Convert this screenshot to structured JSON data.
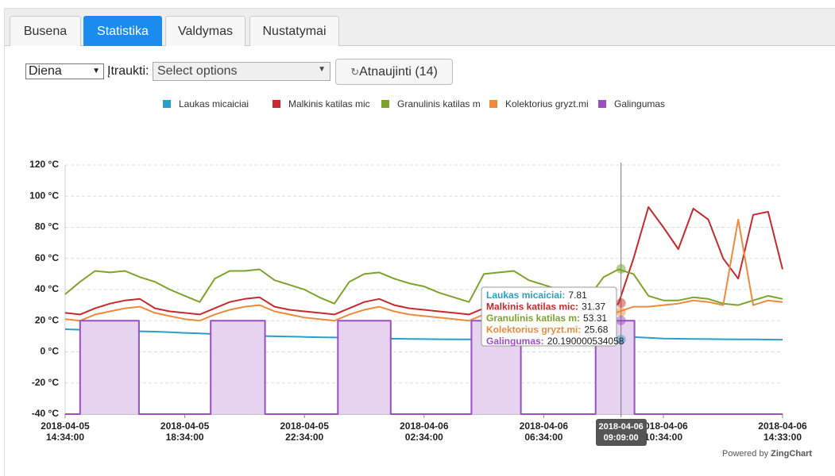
{
  "tabs": [
    "Busena",
    "Statistika",
    "Valdymas",
    "Nustatymai"
  ],
  "active_tab": 1,
  "controls": {
    "period": "Diena",
    "include_label": "Įtraukti:",
    "include_placeholder": "Select options",
    "refresh_button": "Atnaujinti (14)"
  },
  "footer": {
    "powered_by": "Powered by",
    "brand": "ZingChart"
  },
  "chart_data": {
    "type": "line",
    "x": [
      "2018-04-05 14:34",
      "2018-04-05 15:04",
      "2018-04-05 15:34",
      "2018-04-05 16:04",
      "2018-04-05 16:34",
      "2018-04-05 17:04",
      "2018-04-05 17:34",
      "2018-04-05 18:04",
      "2018-04-05 18:34",
      "2018-04-05 19:04",
      "2018-04-05 19:34",
      "2018-04-05 20:04",
      "2018-04-05 20:34",
      "2018-04-05 21:04",
      "2018-04-05 21:34",
      "2018-04-05 22:04",
      "2018-04-05 22:34",
      "2018-04-05 23:04",
      "2018-04-05 23:34",
      "2018-04-06 00:04",
      "2018-04-06 00:34",
      "2018-04-06 01:04",
      "2018-04-06 01:34",
      "2018-04-06 02:04",
      "2018-04-06 02:34",
      "2018-04-06 03:04",
      "2018-04-06 03:34",
      "2018-04-06 04:04",
      "2018-04-06 04:34",
      "2018-04-06 05:04",
      "2018-04-06 05:34",
      "2018-04-06 06:04",
      "2018-04-06 06:34",
      "2018-04-06 07:04",
      "2018-04-06 07:34",
      "2018-04-06 08:04",
      "2018-04-06 08:34",
      "2018-04-06 09:04",
      "2018-04-06 09:34",
      "2018-04-06 10:04",
      "2018-04-06 10:34",
      "2018-04-06 11:04",
      "2018-04-06 11:34",
      "2018-04-06 12:04",
      "2018-04-06 12:34",
      "2018-04-06 13:04",
      "2018-04-06 13:34",
      "2018-04-06 14:04",
      "2018-04-06 14:33"
    ],
    "series": [
      {
        "name": "Laukas micaiciai",
        "color": "#2a9fc9",
        "values": [
          14.5,
          14.2,
          14,
          13.8,
          13.5,
          13.2,
          13,
          12.6,
          12.2,
          11.8,
          11.4,
          11,
          10.6,
          10.2,
          10,
          9.8,
          9.6,
          9.4,
          9.2,
          9,
          8.8,
          8.6,
          8.4,
          8.3,
          8.2,
          8.1,
          8,
          8,
          7.9,
          7.9,
          7.8,
          7.8,
          7.8,
          7.8,
          7.8,
          7.8,
          7.8,
          7.8,
          9.5,
          9,
          8.5,
          8.4,
          8.3,
          8.2,
          8.1,
          8,
          8,
          7.9,
          7.8
        ]
      },
      {
        "name": "Malkinis katilas mic",
        "color": "#c62a2f",
        "values": [
          25,
          24,
          28,
          31,
          33,
          34,
          28,
          26,
          25,
          24,
          28,
          32,
          34,
          35,
          29,
          27,
          26,
          25,
          24,
          28,
          32,
          34,
          30,
          28,
          27,
          26,
          25,
          24,
          28,
          31,
          33,
          34,
          33,
          30,
          28,
          27,
          27,
          31,
          60,
          93,
          80,
          66,
          92,
          85,
          60,
          47,
          88,
          90,
          53
        ]
      },
      {
        "name": "Granulinis katilas m",
        "color": "#7ca42c",
        "values": [
          37,
          45,
          52,
          51,
          52,
          48,
          45,
          40,
          36,
          32,
          47,
          52,
          52,
          53,
          46,
          43,
          40,
          35,
          31,
          45,
          50,
          51,
          47,
          44,
          42,
          38,
          35,
          32,
          50,
          51,
          52,
          46,
          43,
          40,
          37,
          35,
          48,
          53,
          50,
          36,
          33,
          33,
          35,
          34,
          31,
          30,
          33,
          36,
          34
        ]
      },
      {
        "name": "Kolektorius gryzt.mi",
        "color": "#ee8a3c",
        "values": [
          21,
          20,
          24,
          26,
          28,
          29,
          25,
          23,
          21,
          20,
          24,
          27,
          29,
          30,
          26,
          24,
          22,
          21,
          20,
          24,
          27,
          29,
          26,
          24,
          23,
          22,
          21,
          20,
          24,
          26,
          27,
          28,
          27,
          26,
          24,
          23,
          23,
          25.7,
          29,
          29,
          30,
          31,
          33,
          32,
          30,
          85,
          30,
          33,
          32
        ]
      },
      {
        "name": "Galingumas",
        "color": "#9b4fc4",
        "fill": "#e6d3ef",
        "x": [
          "2018-04-05 14:34",
          "2018-04-05 15:04",
          "2018-04-05 15:04",
          "2018-04-05 17:02",
          "2018-04-05 17:02",
          "2018-04-05 19:26",
          "2018-04-05 19:26",
          "2018-04-05 21:15",
          "2018-04-05 21:15",
          "2018-04-05 23:41",
          "2018-04-05 23:41",
          "2018-04-06 01:27",
          "2018-04-06 01:27",
          "2018-04-06 04:09",
          "2018-04-06 04:09",
          "2018-04-06 05:48",
          "2018-04-06 05:48",
          "2018-04-06 08:18",
          "2018-04-06 08:18",
          "2018-04-06 09:36",
          "2018-04-06 09:36",
          "2018-04-06 14:33"
        ],
        "values": [
          -40,
          -40,
          20,
          20,
          -40,
          -40,
          20,
          20,
          -40,
          -40,
          20,
          20,
          -40,
          -40,
          20,
          20,
          -40,
          -40,
          20,
          20,
          -40,
          -40
        ]
      }
    ],
    "xlim": [
      "2018-04-05 14:34:00",
      "2018-04-06 14:33:00"
    ],
    "xticks": [
      "2018-04-05 14:34:00",
      "2018-04-05 18:34:00",
      "2018-04-05 22:34:00",
      "2018-04-06 02:34:00",
      "2018-04-06 06:34:00",
      "2018-04-06 10:34:00",
      "2018-04-06 14:33:00"
    ],
    "ylim": [
      -40,
      120
    ],
    "yticks": [
      {
        "value": -40,
        "label": "-40 °C"
      },
      {
        "value": -20,
        "label": "-20 °C"
      },
      {
        "value": 0,
        "label": "0 °C"
      },
      {
        "value": 20,
        "label": "20 °C"
      },
      {
        "value": 40,
        "label": "40 °C"
      },
      {
        "value": 60,
        "label": "60 °C"
      },
      {
        "value": 80,
        "label": "80 °C"
      },
      {
        "value": 100,
        "label": "100 °C"
      },
      {
        "value": 120,
        "label": "120 °C"
      }
    ],
    "grid": true,
    "tooltip": {
      "x": "2018-04-06 09:09:00",
      "labels": [
        "Laukas micaiciai:",
        "Malkinis katilas mic:",
        "Granulinis katilas m:",
        "Kolektorius gryzt.mi:",
        "Galingumas:"
      ],
      "values": [
        7.81,
        31.37,
        53.31,
        25.68,
        20.190000534058
      ]
    }
  }
}
